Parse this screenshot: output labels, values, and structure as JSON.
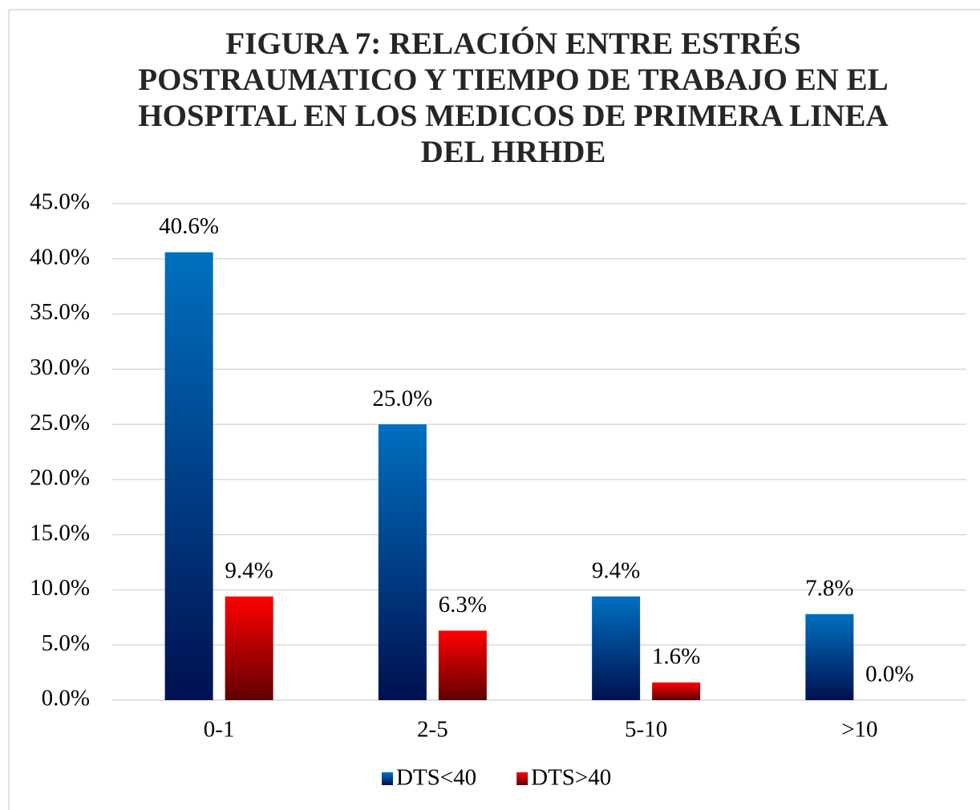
{
  "chart_data": {
    "type": "bar",
    "title": "FIGURA 7: RELACIÓN ENTRE ESTRÉS POSTRAUMATICO Y TIEMPO DE TRABAJO EN EL HOSPITAL EN LOS MEDICOS DE PRIMERA LINEA DEL HRHDE",
    "categories": [
      "0-1",
      "2-5",
      "5-10",
      ">10"
    ],
    "series": [
      {
        "name": "DTS<40",
        "color": "#0070c0",
        "values": [
          40.6,
          25.0,
          9.4,
          7.8
        ],
        "value_labels": [
          "40.6%",
          "25.0%",
          "9.4%",
          "7.8%"
        ]
      },
      {
        "name": "DTS>40",
        "color": "#ff0000",
        "values": [
          9.4,
          6.3,
          1.6,
          0.0
        ],
        "value_labels": [
          "9.4%",
          "6.3%",
          "1.6%",
          "0.0%"
        ]
      }
    ],
    "ylim": [
      0,
      45
    ],
    "yticks": [
      {
        "value": 0,
        "label": "0.0%"
      },
      {
        "value": 5,
        "label": "5.0%"
      },
      {
        "value": 10,
        "label": "10.0%"
      },
      {
        "value": 15,
        "label": "15.0%"
      },
      {
        "value": 20,
        "label": "20.0%"
      },
      {
        "value": 25,
        "label": "25.0%"
      },
      {
        "value": 30,
        "label": "30.0%"
      },
      {
        "value": 35,
        "label": "35.0%"
      },
      {
        "value": 40,
        "label": "40.0%"
      },
      {
        "value": 45,
        "label": "45.0%"
      }
    ],
    "grid": true,
    "legend": "bottom"
  }
}
